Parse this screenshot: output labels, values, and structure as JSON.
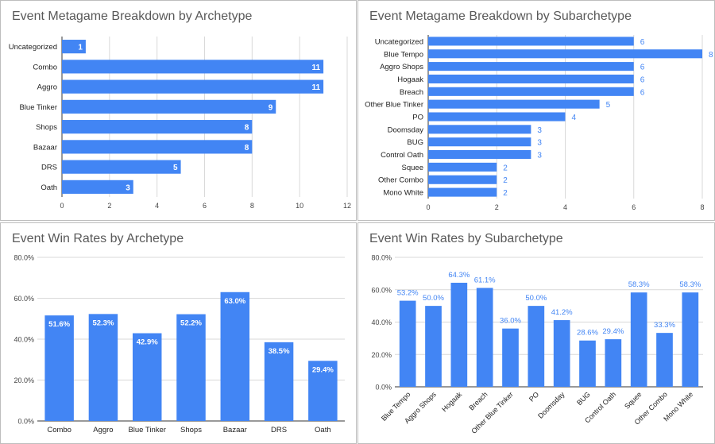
{
  "chart_data": [
    {
      "type": "bar",
      "orientation": "horizontal",
      "title": "Event Metagame Breakdown by Archetype",
      "categories": [
        "Uncategorized",
        "Combo",
        "Aggro",
        "Blue Tinker",
        "Shops",
        "Bazaar",
        "DRS",
        "Oath"
      ],
      "values": [
        1,
        11,
        11,
        9,
        8,
        8,
        5,
        3
      ],
      "data_labels": [
        "1",
        "11",
        "11",
        "9",
        "8",
        "8",
        "5",
        "3"
      ],
      "label_position": "inside-end",
      "xlim": [
        0,
        12
      ],
      "ticks": [
        "0",
        "2",
        "4",
        "6",
        "8",
        "10",
        "12"
      ],
      "grid": true,
      "bar_color": "#4285f4"
    },
    {
      "type": "bar",
      "orientation": "horizontal",
      "title": "Event Metagame Breakdown by Subarchetype",
      "categories": [
        "Uncategorized",
        "Blue Tempo",
        "Aggro Shops",
        "Hogaak",
        "Breach",
        "Other Blue Tinker",
        "PO",
        "Doomsday",
        "BUG",
        "Control Oath",
        "Squee",
        "Other Combo",
        "Mono White"
      ],
      "values": [
        6,
        8,
        6,
        6,
        6,
        5,
        4,
        3,
        3,
        3,
        2,
        2,
        2
      ],
      "data_labels": [
        "6",
        "8",
        "6",
        "6",
        "6",
        "5",
        "4",
        "3",
        "3",
        "3",
        "2",
        "2",
        "2"
      ],
      "label_position": "outside-end",
      "xlim": [
        0,
        8
      ],
      "ticks": [
        "0",
        "2",
        "4",
        "6",
        "8"
      ],
      "grid": true,
      "bar_color": "#4285f4"
    },
    {
      "type": "bar",
      "orientation": "vertical",
      "title": "Event Win Rates by Archetype",
      "categories": [
        "Combo",
        "Aggro",
        "Blue Tinker",
        "Shops",
        "Bazaar",
        "DRS",
        "Oath"
      ],
      "values": [
        51.6,
        52.3,
        42.9,
        52.2,
        63.0,
        38.5,
        29.4
      ],
      "data_labels": [
        "51.6%",
        "52.3%",
        "42.9%",
        "52.2%",
        "63.0%",
        "38.5%",
        "29.4%"
      ],
      "label_position": "inside-end",
      "ylim": [
        0,
        80
      ],
      "ticks": [
        "0.0%",
        "20.0%",
        "40.0%",
        "60.0%",
        "80.0%"
      ],
      "grid": true,
      "bar_color": "#4285f4"
    },
    {
      "type": "bar",
      "orientation": "vertical",
      "title": "Event Win Rates by Subarchetype",
      "categories": [
        "Blue Tempo",
        "Aggro Shops",
        "Hogaak",
        "Breach",
        "Other Blue Tinker",
        "PO",
        "Doomsday",
        "BUG",
        "Control Oath",
        "Squee",
        "Other Combo",
        "Mono White"
      ],
      "values": [
        53.2,
        50.0,
        64.3,
        61.1,
        36.0,
        50.0,
        41.2,
        28.6,
        29.4,
        58.3,
        33.3,
        58.3
      ],
      "data_labels": [
        "53.2%",
        "50.0%",
        "64.3%",
        "61.1%",
        "36.0%",
        "50.0%",
        "41.2%",
        "28.6%",
        "29.4%",
        "58.3%",
        "33.3%",
        "58.3%"
      ],
      "label_position": "outside-end",
      "rotate_category_labels": true,
      "ylim": [
        0,
        80
      ],
      "ticks": [
        "0.0%",
        "20.0%",
        "40.0%",
        "60.0%",
        "80.0%"
      ],
      "grid": true,
      "bar_color": "#4285f4"
    }
  ],
  "colors": {
    "bar": "#4285f4",
    "grid": "#d9d9d9",
    "axis_text": "#444444",
    "title": "#595959",
    "label_inside": "#ffffff",
    "label_outside": "#4285f4"
  }
}
